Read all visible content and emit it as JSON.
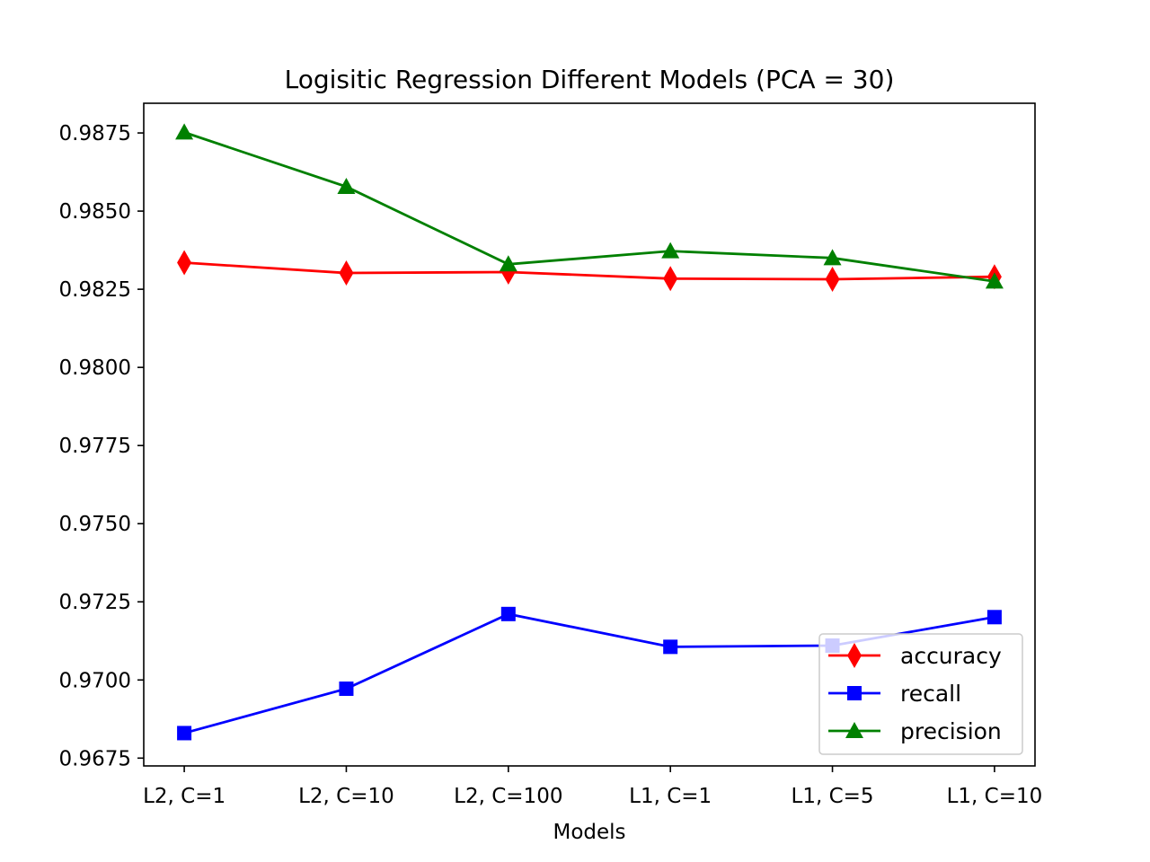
{
  "chart_data": {
    "type": "line",
    "title": "Logisitic Regression Different Models (PCA = 30)",
    "xlabel": "Models",
    "ylabel": "",
    "categories": [
      "L2, C=1",
      "L2, C=10",
      "L2, C=100",
      "L1, C=1",
      "L1, C=5",
      "L1, C=10"
    ],
    "ylim": [
      0.96725,
      0.98845
    ],
    "yticks": [
      0.9675,
      0.97,
      0.9725,
      0.975,
      0.9775,
      0.98,
      0.9825,
      0.985,
      0.9875
    ],
    "ytick_labels": [
      "0.9675",
      "0.9700",
      "0.9725",
      "0.9750",
      "0.9775",
      "0.9800",
      "0.9825",
      "0.9850",
      "0.9875"
    ],
    "grid": false,
    "legend_position": "lower-right",
    "series": [
      {
        "name": "accuracy",
        "color": "#ff0000",
        "marker": "thin-diamond",
        "values": [
          0.98335,
          0.98302,
          0.98305,
          0.98284,
          0.98282,
          0.9829
        ]
      },
      {
        "name": "recall",
        "color": "#0000ff",
        "marker": "square",
        "values": [
          0.9683,
          0.96972,
          0.97211,
          0.97106,
          0.9711,
          0.97201
        ]
      },
      {
        "name": "precision",
        "color": "#008000",
        "marker": "triangle-up",
        "values": [
          0.98752,
          0.98578,
          0.9833,
          0.98372,
          0.9835,
          0.98275
        ]
      }
    ]
  }
}
